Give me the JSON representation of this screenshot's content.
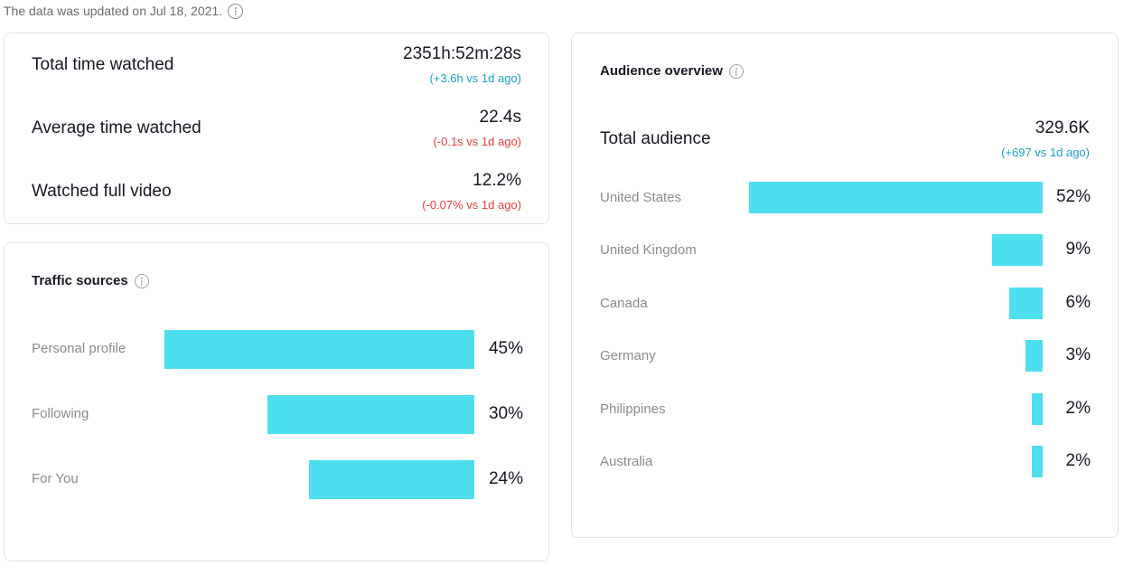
{
  "updated_text": "The data was updated on Jul 18, 2021.",
  "metrics": [
    {
      "label": "Total time watched",
      "value": "2351h:52m:28s",
      "change": "(+3.6h vs 1d ago)",
      "trend": "up"
    },
    {
      "label": "Average time watched",
      "value": "22.4s",
      "change": "(-0.1s vs 1d ago)",
      "trend": "down"
    },
    {
      "label": "Watched full video",
      "value": "12.2%",
      "change": "(-0.07% vs 1d ago)",
      "trend": "down"
    }
  ],
  "traffic": {
    "title": "Traffic sources",
    "items": [
      {
        "label": "Personal profile",
        "value": 45,
        "pct": "45%"
      },
      {
        "label": "Following",
        "value": 30,
        "pct": "30%"
      },
      {
        "label": "For You",
        "value": 24,
        "pct": "24%"
      }
    ]
  },
  "audience": {
    "title": "Audience overview",
    "total_label": "Total audience",
    "total_value": "329.6K",
    "total_change": "(+697 vs 1d ago)",
    "countries": [
      {
        "label": "United States",
        "value": 52,
        "pct": "52%"
      },
      {
        "label": "United Kingdom",
        "value": 9,
        "pct": "9%"
      },
      {
        "label": "Canada",
        "value": 6,
        "pct": "6%"
      },
      {
        "label": "Germany",
        "value": 3,
        "pct": "3%"
      },
      {
        "label": "Philippines",
        "value": 2,
        "pct": "2%"
      },
      {
        "label": "Australia",
        "value": 2,
        "pct": "2%"
      }
    ]
  },
  "colors": {
    "bar": "#4ddfee",
    "positive": "#1aa3c2",
    "negative": "#ea3d3d"
  }
}
